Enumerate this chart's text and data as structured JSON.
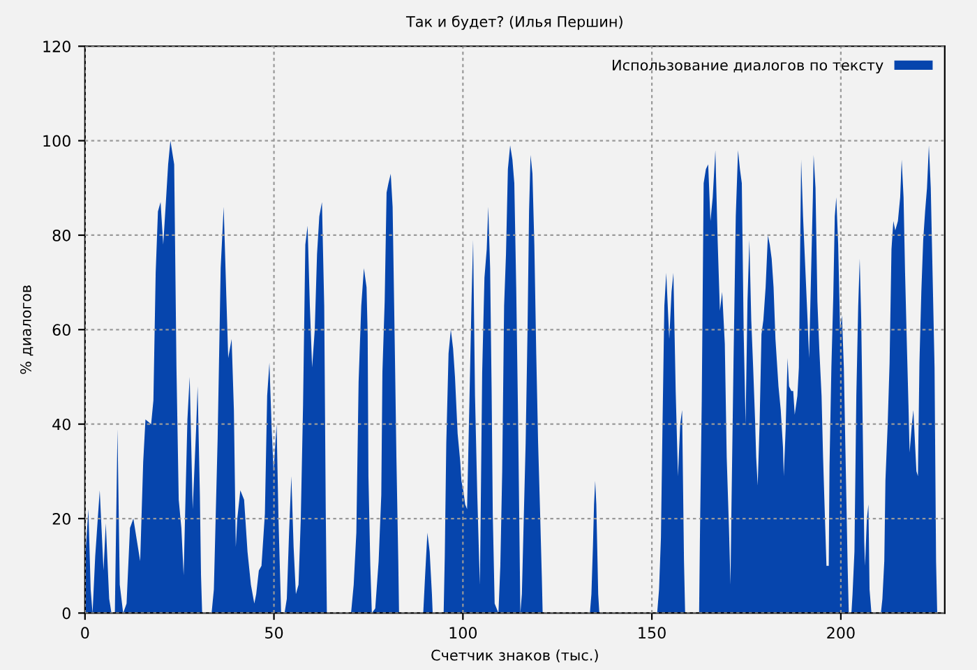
{
  "chart_data": {
    "type": "area",
    "title": "Так и будет? (Илья Першин)",
    "xlabel": "Счетчик знаков (тыс.)",
    "ylabel": "% диалогов",
    "xlim": [
      0,
      227.5
    ],
    "xticks": [
      0,
      50,
      100,
      150,
      200
    ],
    "ylim": [
      0,
      120
    ],
    "yticks": [
      0,
      20,
      40,
      60,
      80,
      100,
      120
    ],
    "grid": true,
    "legend": "top right",
    "series": [
      {
        "name": "Использование диалогов по тексту",
        "color": "#0645ad",
        "x": [
          0,
          0.9,
          1.5,
          2,
          2.7,
          3.9,
          4.9,
          5.5,
          6.4,
          7,
          7.9,
          8.6,
          9.2,
          10.1,
          11,
          11.9,
          12.8,
          13.8,
          14.6,
          15.4,
          16,
          17.5,
          18.1,
          18.7,
          19.3,
          20,
          20.7,
          21.4,
          22,
          22.6,
          23.6,
          24.2,
          24.8,
          25.5,
          26.1,
          27.1,
          27.7,
          28.5,
          29.4,
          29.8,
          30.4,
          30.7,
          31,
          33.5,
          34.1,
          35.1,
          35.9,
          36.7,
          37.4,
          37.9,
          38.8,
          39.4,
          39.9,
          40.3,
          41.1,
          42.1,
          43,
          43.9,
          44.8,
          45.3,
          46,
          46.7,
          47.6,
          48.2,
          48.8,
          49.4,
          49.9,
          50.7,
          51.2,
          51.9,
          52.8,
          53.4,
          54,
          54.6,
          55.2,
          55.8,
          56.5,
          57.1,
          57.7,
          58.3,
          58.9,
          59.5,
          60.1,
          60.8,
          61.4,
          62,
          62.7,
          63.3,
          63.7,
          64,
          70.4,
          71.1,
          71.8,
          72.4,
          73.1,
          73.8,
          74.5,
          74.8,
          75,
          75.5,
          75.9,
          76.8,
          77.7,
          78.4,
          78.7,
          79.3,
          79.8,
          80.3,
          80.9,
          81.4,
          82,
          82.4,
          82.9,
          83.1,
          89.5,
          90,
          90.6,
          91.2,
          91.8,
          92,
          94.9,
          95.2,
          95.6,
          96.2,
          96.8,
          97.4,
          97.9,
          98.6,
          99.3,
          99.6,
          100.1,
          100.6,
          101.1,
          101.7,
          102.3,
          102.7,
          103.2,
          103.8,
          104.3,
          104.5,
          105.1,
          105.7,
          106.3,
          106.7,
          107.2,
          107.6,
          107.9,
          108.4,
          109.4,
          109.9,
          110.4,
          110.9,
          111.4,
          111.9,
          112.5,
          113.1,
          113.6,
          114.1,
          114.6,
          115,
          115.2,
          115.6,
          116.1,
          116.6,
          117.1,
          117.5,
          117.9,
          118.4,
          118.9,
          119.4,
          119.9,
          120.4,
          120.9,
          121.1,
          133.6,
          134,
          134.4,
          134.7,
          135,
          135.3,
          135.8,
          136.1,
          151.4,
          151.9,
          152.4,
          152.8,
          153.3,
          153.8,
          154.6,
          155.2,
          155.7,
          156.3,
          156.9,
          157.5,
          158,
          158.5,
          158.8,
          162.5,
          162.7,
          163.2,
          163.7,
          164.3,
          164.9,
          165.5,
          166.1,
          166.8,
          167.4,
          168,
          168.6,
          169.3,
          169.8,
          170.4,
          170.8,
          171,
          171.6,
          172.2,
          172.8,
          173.3,
          173.8,
          174.3,
          174.8,
          175.3,
          175.8,
          176.3,
          176.8,
          177.3,
          177.6,
          178,
          178.5,
          179,
          179.5,
          180.1,
          180.7,
          181.2,
          181.7,
          182.2,
          182.7,
          183.5,
          184.1,
          184.7,
          184.9,
          185.4,
          185.9,
          186.3,
          186.9,
          187.4,
          187.8,
          188.5,
          188.9,
          189.3,
          189.5,
          190,
          190.6,
          191.2,
          191.6,
          192.1,
          192.6,
          192.8,
          193.3,
          193.8,
          194.3,
          194.9,
          195.3,
          195.8,
          196.2,
          196.8,
          197,
          197.5,
          198,
          198.4,
          198.8,
          199.3,
          199.8,
          200.3,
          200.8,
          201.3,
          201.8,
          202.1,
          202.8,
          203.1,
          203.6,
          204.1,
          204.6,
          205,
          205.4,
          205.8,
          206.2,
          206.4,
          206.9,
          207.3,
          207.6,
          208.1,
          210.6,
          211,
          211.5,
          211.8,
          212.4,
          212.9,
          213.4,
          213.9,
          214.4,
          215.1,
          215.7,
          216.1,
          216.6,
          217,
          217.5,
          217.9,
          218.2,
          218.8,
          219.2,
          219.5,
          220,
          220.4,
          220.8,
          221.3,
          221.8,
          222.3,
          222.8,
          223.3,
          223.8,
          224.3,
          224.8,
          225.2,
          225.5
        ],
        "values": [
          11,
          22,
          5,
          0,
          12,
          26,
          9,
          19,
          3,
          0,
          0,
          39,
          6,
          0,
          2,
          18,
          20,
          15,
          11,
          32,
          41,
          40,
          45,
          72,
          85,
          87,
          78,
          87,
          95,
          100,
          95,
          52,
          24,
          18,
          8,
          41,
          50,
          22,
          39,
          48,
          25,
          8,
          0,
          0,
          5,
          37,
          73,
          86,
          67,
          54,
          58,
          43,
          14,
          20,
          26,
          24,
          13,
          6,
          2,
          4,
          9,
          10,
          21,
          46,
          53,
          39,
          30,
          40,
          20,
          0,
          0,
          3,
          17,
          29,
          14,
          4,
          6,
          20,
          44,
          78,
          82,
          65,
          52,
          60,
          76,
          84,
          87,
          65,
          22,
          0,
          0,
          6,
          17,
          49,
          65,
          73,
          69,
          59,
          29,
          10,
          0,
          1,
          11,
          25,
          51,
          66,
          89,
          91,
          93,
          86,
          55,
          33,
          11,
          0,
          0,
          8,
          17,
          13,
          4,
          0,
          0,
          12,
          36,
          55,
          60,
          56,
          50,
          38,
          32,
          28,
          26,
          23,
          22,
          44,
          67,
          79,
          46,
          25,
          11,
          6,
          51,
          71,
          77,
          86,
          73,
          47,
          21,
          2,
          0,
          10,
          30,
          65,
          76,
          94,
          99,
          96,
          91,
          69,
          41,
          14,
          0,
          4,
          20,
          36,
          60,
          85,
          97,
          93,
          78,
          55,
          36,
          22,
          7,
          0,
          0,
          4,
          14,
          23,
          28,
          23,
          4,
          0,
          0,
          5,
          16,
          39,
          65,
          72,
          58,
          68,
          72,
          47,
          29,
          40,
          43,
          11,
          0,
          0,
          15,
          45,
          91,
          94,
          95,
          83,
          88,
          98,
          79,
          64,
          68,
          57,
          33,
          18,
          6,
          19,
          53,
          84,
          98,
          94,
          91,
          59,
          40,
          66,
          79,
          62,
          52,
          41,
          33,
          27,
          40,
          59,
          62,
          69,
          80,
          78,
          75,
          69,
          58,
          48,
          43,
          35,
          29,
          39,
          54,
          48,
          47,
          47,
          42,
          46,
          52,
          82,
          96,
          84,
          73,
          62,
          54,
          71,
          88,
          97,
          90,
          66,
          56,
          46,
          33,
          20,
          10,
          10,
          31,
          52,
          67,
          84,
          88,
          78,
          60,
          63,
          52,
          31,
          10,
          0,
          0,
          4,
          13,
          46,
          65,
          75,
          62,
          39,
          15,
          10,
          20,
          23,
          5,
          0,
          0,
          3,
          11,
          28,
          40,
          53,
          77,
          83,
          81,
          83,
          88,
          96,
          88,
          72,
          56,
          44,
          34,
          40,
          43,
          38,
          30,
          29,
          53,
          68,
          79,
          85,
          90,
          99,
          90,
          71,
          52,
          11,
          0
        ]
      }
    ]
  }
}
